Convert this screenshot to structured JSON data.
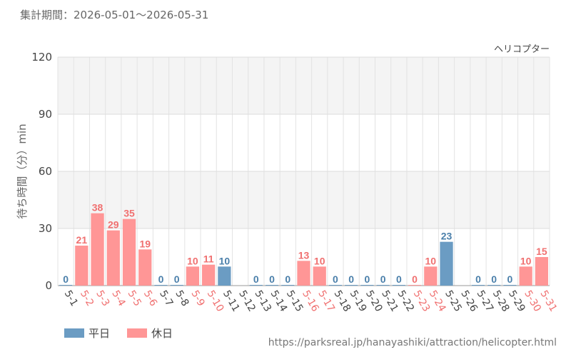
{
  "period_label": "集計期間：2026-05-01～2026-05-31",
  "attraction": "ヘリコプター",
  "source_url": "https://parksreal.jp/hanayashiki/attraction/helicopter.html",
  "chart_data": {
    "type": "bar",
    "ylabel": "待ち時間（分）min",
    "ylim": [
      0,
      120
    ],
    "yticks": [
      0,
      30,
      60,
      90,
      120
    ],
    "categories": [
      "5-1",
      "5-2",
      "5-3",
      "5-4",
      "5-5",
      "5-6",
      "5-7",
      "5-8",
      "5-9",
      "5-10",
      "5-11",
      "5-12",
      "5-13",
      "5-14",
      "5-15",
      "5-16",
      "5-17",
      "5-18",
      "5-19",
      "5-20",
      "5-21",
      "5-22",
      "5-23",
      "5-24",
      "5-25",
      "5-26",
      "5-27",
      "5-28",
      "5-29",
      "5-30",
      "5-31"
    ],
    "values": [
      0,
      21,
      38,
      29,
      35,
      19,
      0,
      0,
      10,
      11,
      10,
      null,
      0,
      0,
      0,
      13,
      10,
      0,
      0,
      0,
      0,
      0,
      0,
      10,
      23,
      null,
      0,
      0,
      0,
      10,
      15
    ],
    "day_type": [
      "weekday",
      "holiday",
      "holiday",
      "holiday",
      "holiday",
      "holiday",
      "weekday",
      "weekday",
      "holiday",
      "holiday",
      "weekday",
      "weekday",
      "weekday",
      "weekday",
      "weekday",
      "holiday",
      "holiday",
      "weekday",
      "weekday",
      "weekday",
      "weekday",
      "weekday",
      "holiday",
      "holiday",
      "weekday",
      "weekday",
      "weekday",
      "weekday",
      "weekday",
      "holiday",
      "holiday"
    ],
    "legend": [
      {
        "key": "weekday",
        "label": "平日",
        "color": "#6b9cc3"
      },
      {
        "key": "holiday",
        "label": "休日",
        "color": "#ff9696"
      }
    ],
    "value_label_colors": {
      "weekday": "#4a7faa",
      "holiday": "#f07070"
    },
    "tick_label_colors": {
      "weekday": "#444444",
      "holiday": "#f07070"
    },
    "grid": true
  }
}
